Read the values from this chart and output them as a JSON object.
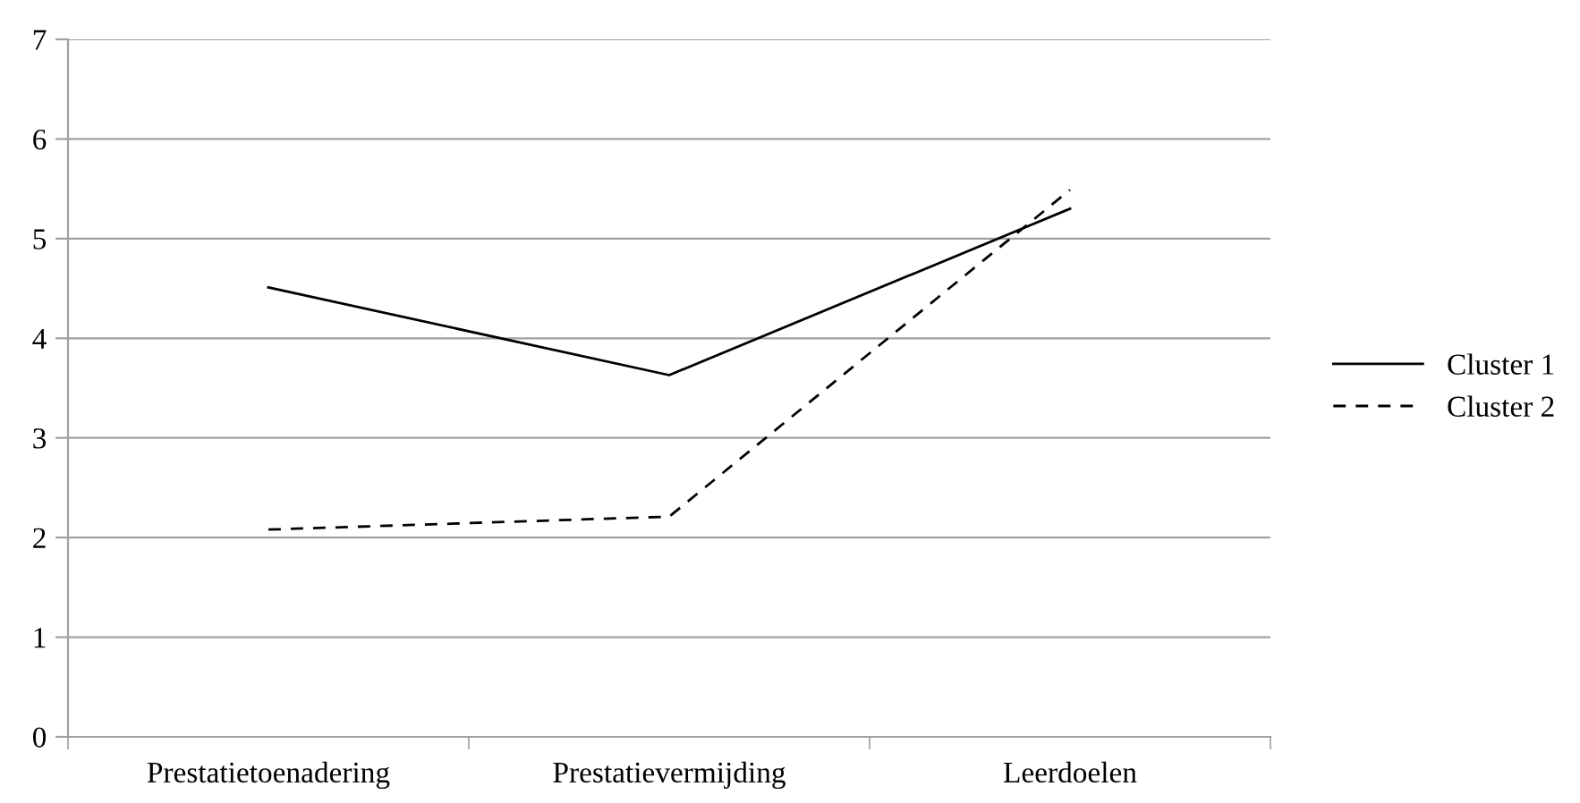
{
  "chart_data": {
    "type": "line",
    "categories": [
      "Prestatietoenadering",
      "Prestatievermijding",
      "Leerdoelen"
    ],
    "series": [
      {
        "name": "Cluster 1",
        "color": "#000000",
        "values": [
          4.51,
          3.63,
          5.3
        ],
        "line_style": "solid"
      },
      {
        "name": "Cluster 2",
        "color": "#000000",
        "values": [
          2.08,
          2.21,
          5.49
        ],
        "line_style": "dashed"
      }
    ],
    "ylim": [
      0,
      7
    ],
    "yticks": [
      0,
      1,
      2,
      3,
      4,
      5,
      6,
      7
    ],
    "grid": "y",
    "legend": "right",
    "marker": "none"
  }
}
